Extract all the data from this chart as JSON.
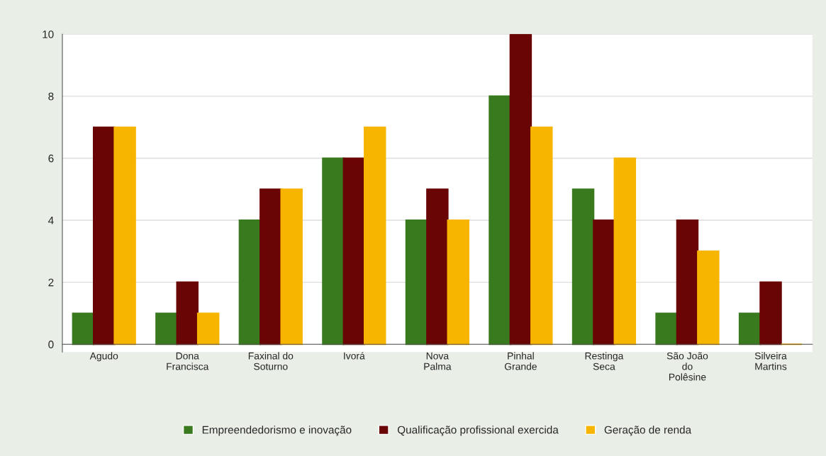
{
  "chart_data": {
    "type": "bar",
    "categories": [
      "Agudo",
      "Dona\nFrancisca",
      "Faxinal do\nSoturno",
      "Ivorá",
      "Nova\nPalma",
      "Pinhal\nGrande",
      "Restinga\nSeca",
      "São João\ndo\nPolêsine",
      "Silveira\nMartins"
    ],
    "series": [
      {
        "name": "Empreendedorismo e inovação",
        "color": "#3a7a1e",
        "values": [
          1,
          1,
          4,
          6,
          4,
          8,
          5,
          1,
          1
        ]
      },
      {
        "name": "Qualificação profissional exercida",
        "color": "#6a0505",
        "values": [
          7,
          2,
          5,
          6,
          5,
          10,
          4,
          4,
          2
        ]
      },
      {
        "name": "Geração de renda",
        "color": "#f7b500",
        "values": [
          7,
          1,
          5,
          7,
          4,
          7,
          6,
          3,
          0
        ]
      }
    ],
    "ylim": [
      -0.25,
      10
    ],
    "yticks": [
      0,
      2,
      4,
      6,
      8,
      10
    ],
    "grid": "y",
    "legend": "bottom"
  }
}
